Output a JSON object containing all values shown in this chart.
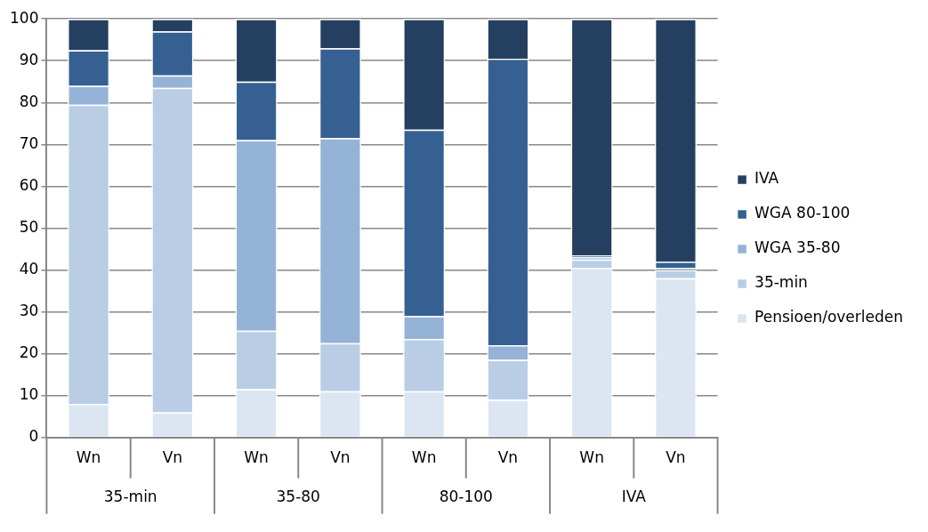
{
  "chart_data": {
    "type": "bar",
    "stacked": true,
    "categories": [
      "Wn",
      "Vn",
      "Wn",
      "Vn",
      "Wn",
      "Vn",
      "Wn",
      "Vn"
    ],
    "series": [
      {
        "name": "Pensioen/overleden",
        "color": "#dce6f2",
        "values": [
          8,
          6,
          11.5,
          11,
          11,
          9,
          40.5,
          38
        ]
      },
      {
        "name": "35-min",
        "color": "#b9cde5",
        "values": [
          71.5,
          77.5,
          14,
          11.5,
          12.5,
          9.5,
          2,
          2
        ]
      },
      {
        "name": "WGA 35-80",
        "color": "#95b3d7",
        "values": [
          4.5,
          3,
          45.5,
          49,
          5.5,
          3.5,
          0.5,
          0.5
        ]
      },
      {
        "name": "WGA 80-100",
        "color": "#366092",
        "values": [
          8.5,
          10.5,
          14,
          21.5,
          44.5,
          68.5,
          0.5,
          1.5
        ]
      },
      {
        "name": "IVA",
        "color": "#243f60",
        "values": [
          7.5,
          3,
          15,
          7,
          26.5,
          9.5,
          56.5,
          58
        ]
      }
    ],
    "annotations": [
      "35-min",
      "35-80",
      "80-100",
      "IVA"
    ],
    "ylim": [
      0,
      100
    ],
    "yticks": [
      0,
      10,
      20,
      30,
      40,
      50,
      60,
      70,
      80,
      90,
      100
    ],
    "grid": "y",
    "legend": "right"
  }
}
